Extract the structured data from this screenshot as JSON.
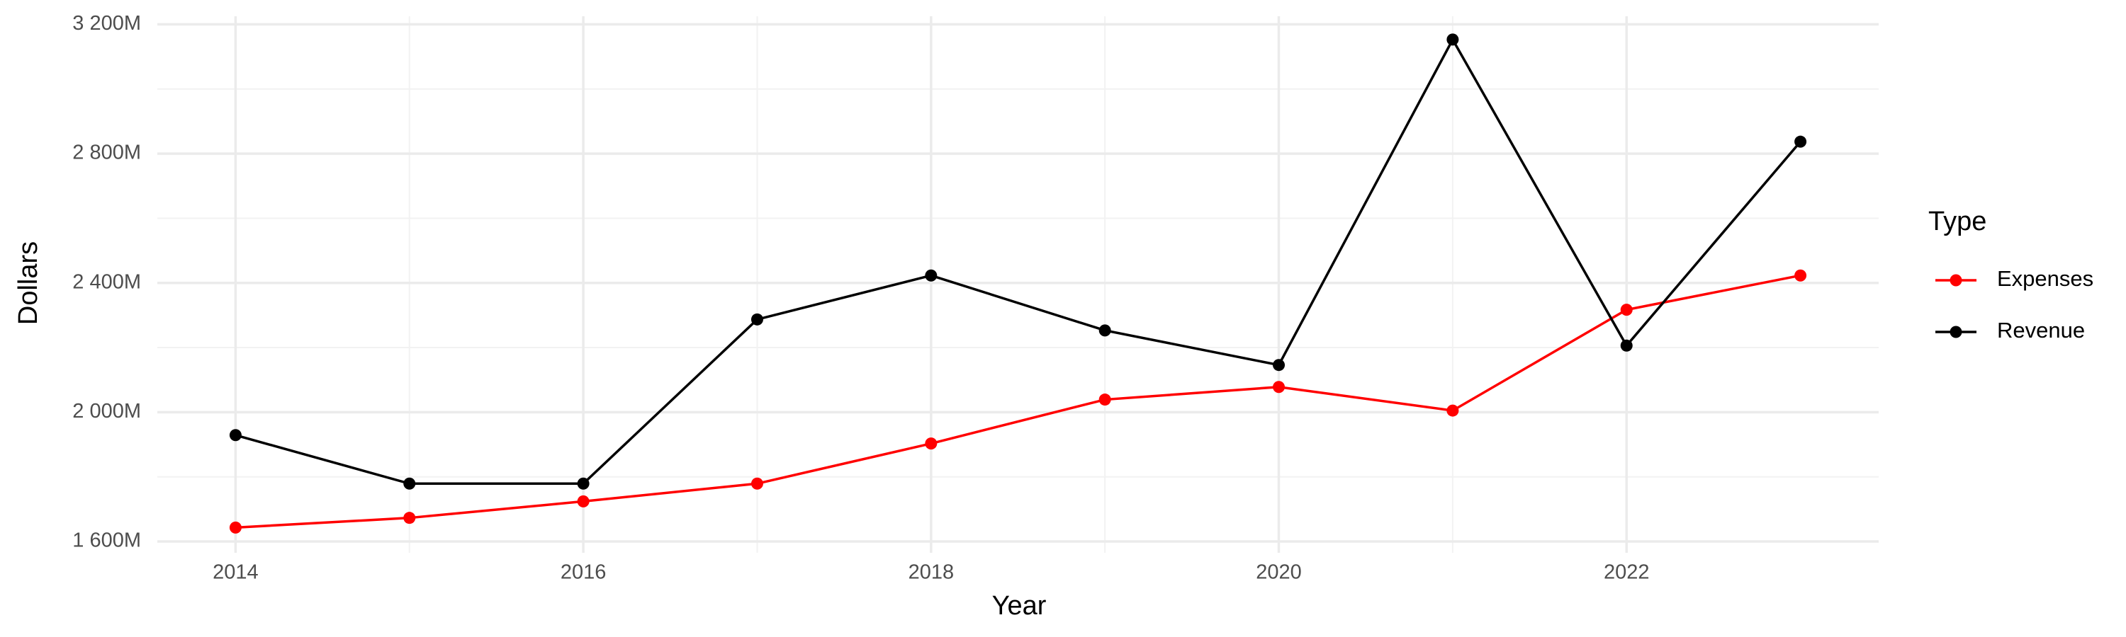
{
  "chart_data": {
    "type": "line",
    "x_label": "Year",
    "y_label": "Dollars",
    "legend_title": "Type",
    "legend_position": "right",
    "grid": true,
    "x": [
      2014,
      2015,
      2016,
      2017,
      2018,
      2019,
      2020,
      2021,
      2022,
      2023
    ],
    "series": [
      {
        "name": "Expenses",
        "color": "#ff0000",
        "values": [
          1643000000,
          1673000000,
          1724000000,
          1779000000,
          1903000000,
          2039000000,
          2078000000,
          2005000000,
          2317000000,
          2423000000
        ]
      },
      {
        "name": "Revenue",
        "color": "#000000",
        "values": [
          1929000000,
          1779000000,
          1779000000,
          2287000000,
          2423000000,
          2253000000,
          2146000000,
          3153000000,
          2206000000,
          2837000000
        ]
      }
    ],
    "xlim": [
      2013.55,
      2023.45
    ],
    "xticks": [
      2014,
      2016,
      2018,
      2020,
      2022
    ],
    "ylim": [
      1565000000,
      3225000000
    ],
    "yticks": [
      {
        "value": 1600000000,
        "label": "1 600M"
      },
      {
        "value": 2000000000,
        "label": "2 000M"
      },
      {
        "value": 2400000000,
        "label": "2 400M"
      },
      {
        "value": 2800000000,
        "label": "2 800M"
      },
      {
        "value": 3200000000,
        "label": "3 200M"
      }
    ]
  }
}
